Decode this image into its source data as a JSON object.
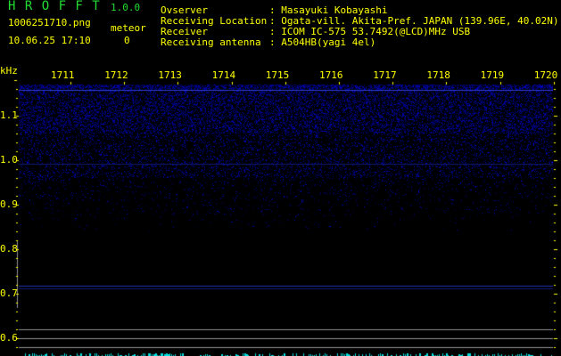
{
  "app": {
    "name": "H R O F F T",
    "version": "1.0.0"
  },
  "file": {
    "filename": "1006251710.png",
    "datetime": "10.06.25 17:10"
  },
  "meteor": {
    "label": "meteor",
    "count": "0"
  },
  "info": [
    {
      "label": "Ovserver",
      "value": ": Masayuki Kobayashi"
    },
    {
      "label": "Receiving Location",
      "value": ": Ogata-vill. Akita-Pref. JAPAN (139.96E, 40.02N)"
    },
    {
      "label": "Receiver",
      "value": ": ICOM IC-575 53.7492(@LCD)MHz USB"
    },
    {
      "label": "Receiving antenna",
      "value": ": A504HB(yagi 4el)"
    }
  ],
  "axes": {
    "y_unit": "kHz",
    "x_ticks": [
      "1711",
      "1712",
      "1713",
      "1714",
      "1715",
      "1716",
      "1717",
      "1718",
      "1719",
      "1720"
    ],
    "y_ticks": [
      "1.1",
      "1.0",
      "0.9",
      "0.8",
      "0.7",
      "0.6"
    ]
  },
  "colors": {
    "text": "#ffff00",
    "title": "#22dd33",
    "noise": "#2030c0",
    "meter": "#00e0e0",
    "guide": "#909090"
  }
}
